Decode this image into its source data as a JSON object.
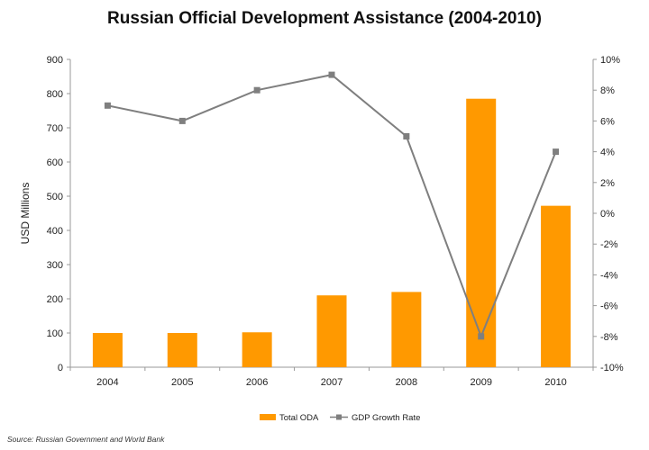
{
  "colors": {
    "bar": "#FF9900",
    "line": "#7F7F7F",
    "axis": "#999999"
  },
  "chart_data": {
    "type": "bar",
    "title": "Russian Official Development Assistance (2004-2010)",
    "categories": [
      "2004",
      "2005",
      "2006",
      "2007",
      "2008",
      "2009",
      "2010"
    ],
    "series": [
      {
        "name": "Total ODA",
        "type": "bar",
        "axis": "left",
        "values": [
          100,
          100,
          102,
          210,
          220,
          785,
          472
        ]
      },
      {
        "name": "GDP Growth Rate",
        "type": "line",
        "axis": "right",
        "values": [
          7.0,
          6.0,
          8.0,
          9.0,
          5.0,
          -8.0,
          4.0
        ]
      }
    ],
    "ylabel": "USD Millions",
    "ylim": [
      0,
      900
    ],
    "yticks": [
      "0",
      "100",
      "200",
      "300",
      "400",
      "500",
      "600",
      "700",
      "800",
      "900"
    ],
    "y2lim": [
      -10,
      10
    ],
    "y2ticks": [
      "-10%",
      "-8%",
      "-6%",
      "-4%",
      "-2%",
      "0%",
      "2%",
      "4%",
      "6%",
      "8%",
      "10%"
    ],
    "legend_position": "bottom",
    "grid": false,
    "source": "Source: Russian Government and World Bank"
  }
}
